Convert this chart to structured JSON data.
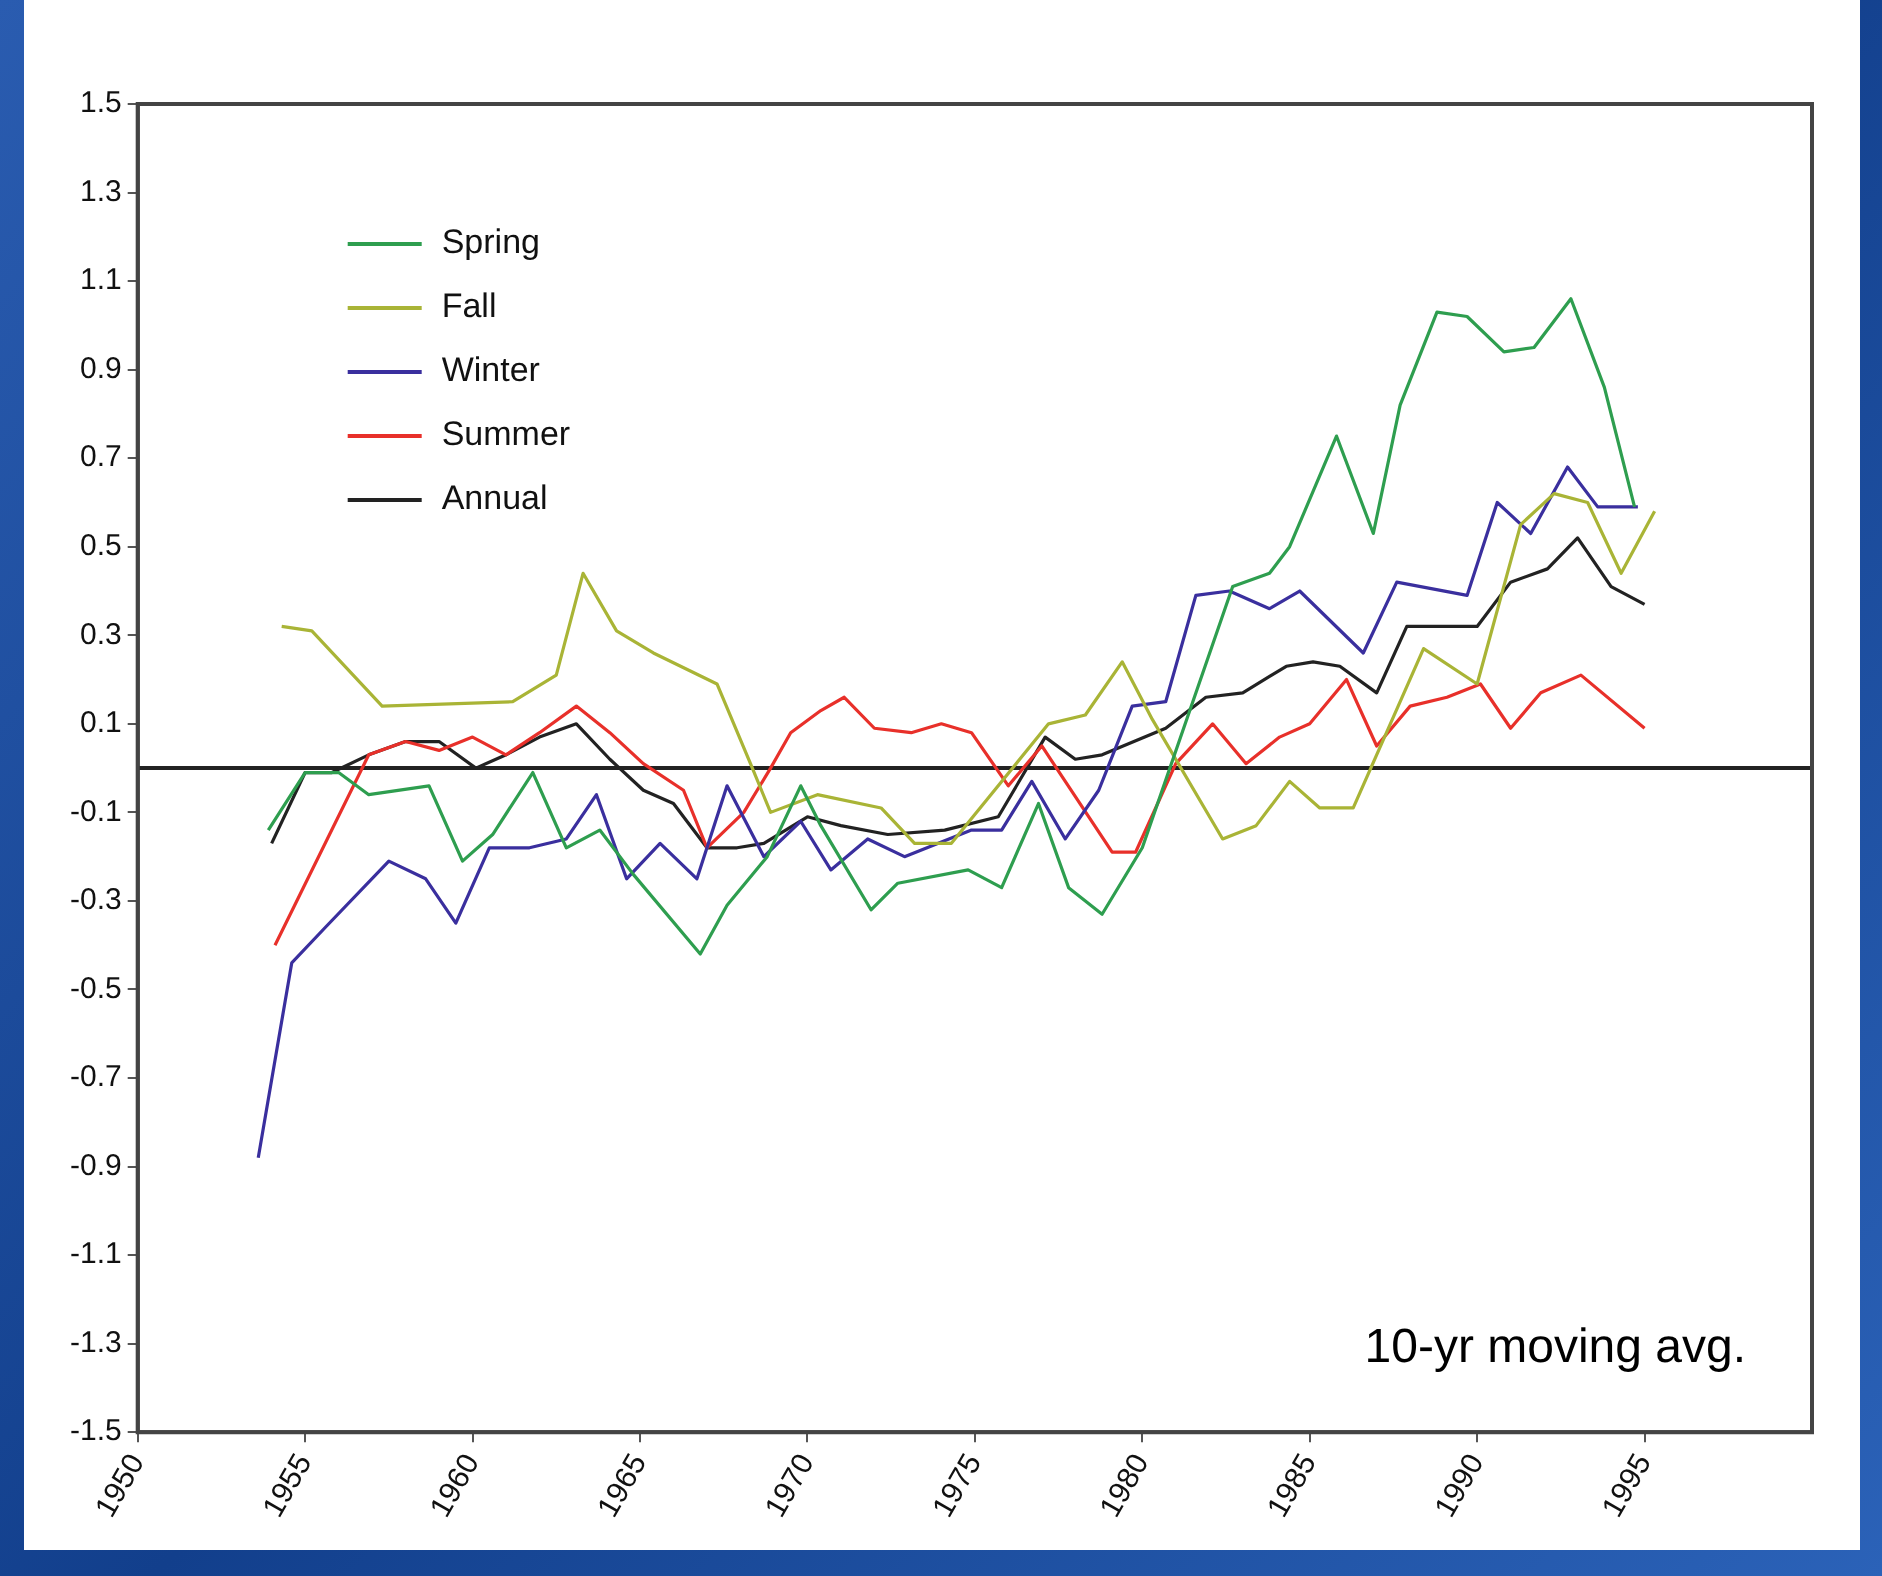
{
  "chart_data": {
    "type": "line",
    "xlim": [
      1950,
      2000
    ],
    "xticks": [
      1950,
      1955,
      1960,
      1965,
      1970,
      1975,
      1980,
      1985,
      1990,
      1995
    ],
    "ylim": [
      -1.5,
      1.5
    ],
    "yticks": [
      -1.5,
      -1.3,
      -1.1,
      -0.9,
      -0.7,
      -0.5,
      -0.3,
      -0.1,
      0.1,
      0.3,
      0.5,
      0.7,
      0.9,
      1.1,
      1.3,
      1.5
    ],
    "grid": false,
    "legend": "top left",
    "marker": "none",
    "line_style": "solid",
    "ref_lines": [
      {
        "axis": "y",
        "value": 0,
        "color": "#222222"
      }
    ],
    "annotations": [
      {
        "text": "10-yr moving avg."
      }
    ],
    "series": [
      {
        "name": "Spring",
        "color": "#2e9e4f",
        "x": [
          1953.9,
          1955,
          1956,
          1956.9,
          1958.7,
          1959.7,
          1960.6,
          1961.8,
          1962.8,
          1963.8,
          1964.8,
          1966.8,
          1967.6,
          1968.8,
          1969.8,
          1970.4,
          1971.9,
          1972.7,
          1974.8,
          1975.8,
          1976.9,
          1977.8,
          1978.8,
          1980,
          1982.7,
          1983.8,
          1984.4,
          1985.8,
          1986.9,
          1987.7,
          1988.8,
          1989.7,
          1990.8,
          1991.7,
          1992.8,
          1993.8,
          1994.7
        ],
        "values": [
          -0.14,
          -0.01,
          -0.01,
          -0.06,
          -0.04,
          -0.21,
          -0.15,
          -0.01,
          -0.18,
          -0.14,
          -0.24,
          -0.42,
          -0.31,
          -0.2,
          -0.04,
          -0.13,
          -0.32,
          -0.26,
          -0.23,
          -0.27,
          -0.08,
          -0.27,
          -0.33,
          -0.18,
          0.41,
          0.44,
          0.5,
          0.75,
          0.53,
          0.82,
          1.03,
          1.02,
          0.94,
          0.95,
          1.06,
          0.86,
          0.59
        ]
      },
      {
        "name": "Fall",
        "color": "#a9b436",
        "x": [
          1954.3,
          1955.2,
          1957.3,
          1961.2,
          1962.5,
          1963.3,
          1964.3,
          1965.4,
          1967.3,
          1968.3,
          1968.9,
          1970.3,
          1972.2,
          1973.2,
          1974.3,
          1977.2,
          1978.3,
          1979.4,
          1980.3,
          1982.4,
          1983.4,
          1984.4,
          1985.3,
          1986.3,
          1988.4,
          1990,
          1991.3,
          1992.3,
          1993.3,
          1994.3,
          1995.3
        ],
        "values": [
          0.32,
          0.31,
          0.14,
          0.15,
          0.21,
          0.44,
          0.31,
          0.26,
          0.19,
          0.01,
          -0.1,
          -0.06,
          -0.09,
          -0.17,
          -0.17,
          0.1,
          0.12,
          0.24,
          0.11,
          -0.16,
          -0.13,
          -0.03,
          -0.09,
          -0.09,
          0.27,
          0.19,
          0.55,
          0.62,
          0.6,
          0.44,
          0.58
        ]
      },
      {
        "name": "Winter",
        "color": "#3a2f9e",
        "x": [
          1953.6,
          1954.6,
          1955.6,
          1957.5,
          1958.6,
          1959.5,
          1960.5,
          1961.7,
          1962.8,
          1963.7,
          1964.6,
          1965.6,
          1966.7,
          1967.6,
          1968.7,
          1969.8,
          1970.7,
          1971.8,
          1972.9,
          1974.9,
          1975.8,
          1976.7,
          1977.7,
          1978.7,
          1979.7,
          1980.7,
          1981.6,
          1982.6,
          1983.8,
          1984.7,
          1986.6,
          1987.6,
          1989.7,
          1990.6,
          1991.6,
          1992.7,
          1993.6,
          1994.8
        ],
        "values": [
          -0.88,
          -0.44,
          -0.36,
          -0.21,
          -0.25,
          -0.35,
          -0.18,
          -0.18,
          -0.16,
          -0.06,
          -0.25,
          -0.17,
          -0.25,
          -0.04,
          -0.2,
          -0.12,
          -0.23,
          -0.16,
          -0.2,
          -0.14,
          -0.14,
          -0.03,
          -0.16,
          -0.05,
          0.14,
          0.15,
          0.39,
          0.4,
          0.36,
          0.4,
          0.26,
          0.42,
          0.39,
          0.6,
          0.53,
          0.68,
          0.59,
          0.59
        ]
      },
      {
        "name": "Summer",
        "color": "#e8302a",
        "x": [
          1954.1,
          1956.9,
          1958,
          1959,
          1960,
          1961,
          1962,
          1963.1,
          1964.1,
          1965.1,
          1966.3,
          1967,
          1968.1,
          1968.9,
          1969.5,
          1970.4,
          1971.1,
          1972,
          1973.1,
          1974,
          1974.9,
          1976,
          1977,
          1979.1,
          1979.8,
          1981,
          1982.1,
          1983.1,
          1984.1,
          1985,
          1986.1,
          1987,
          1988,
          1989.1,
          1990.1,
          1991,
          1991.9,
          1993.1,
          1995
        ],
        "values": [
          -0.4,
          0.03,
          0.06,
          0.04,
          0.07,
          0.03,
          0.08,
          0.14,
          0.08,
          0.01,
          -0.05,
          -0.18,
          -0.1,
          0.0,
          0.08,
          0.13,
          0.16,
          0.09,
          0.08,
          0.1,
          0.08,
          -0.04,
          0.05,
          -0.19,
          -0.19,
          0.01,
          0.1,
          0.01,
          0.07,
          0.1,
          0.2,
          0.05,
          0.14,
          0.16,
          0.19,
          0.09,
          0.17,
          0.21,
          0.09
        ]
      },
      {
        "name": "Annual",
        "color": "#222222",
        "x": [
          1954,
          1955,
          1955.8,
          1956.9,
          1958,
          1959,
          1960.1,
          1961,
          1962,
          1963.1,
          1964.1,
          1965.1,
          1966,
          1967,
          1967.9,
          1968.7,
          1970,
          1971,
          1972.4,
          1974.1,
          1975.7,
          1977.1,
          1978,
          1978.8,
          1980.7,
          1981.9,
          1983,
          1984.3,
          1985.1,
          1985.9,
          1987,
          1987.9,
          1990,
          1991,
          1992.1,
          1993,
          1994,
          1995
        ],
        "values": [
          -0.17,
          -0.01,
          -0.01,
          0.03,
          0.06,
          0.06,
          0.0,
          0.03,
          0.07,
          0.1,
          0.02,
          -0.05,
          -0.08,
          -0.18,
          -0.18,
          -0.17,
          -0.11,
          -0.13,
          -0.15,
          -0.14,
          -0.11,
          0.07,
          0.02,
          0.03,
          0.09,
          0.16,
          0.17,
          0.23,
          0.24,
          0.23,
          0.17,
          0.32,
          0.32,
          0.42,
          0.45,
          0.52,
          0.41,
          0.37
        ]
      }
    ]
  }
}
